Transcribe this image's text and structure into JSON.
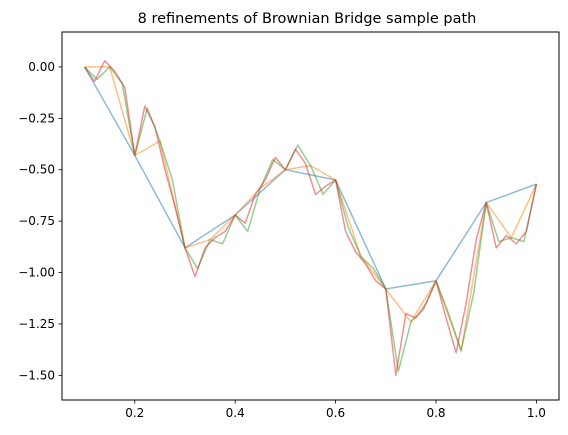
{
  "chart_data": {
    "type": "line",
    "title": "8 refinements of Brownian Bridge sample path",
    "xlabel": "",
    "ylabel": "",
    "xlim": [
      0.055,
      1.045
    ],
    "ylim": [
      -1.62,
      0.17
    ],
    "xticks": [
      0.2,
      0.4,
      0.6,
      0.8,
      1.0
    ],
    "xtick_labels": [
      "0.2",
      "0.4",
      "0.6",
      "0.8",
      "1.0"
    ],
    "yticks": [
      0.0,
      -0.25,
      -0.5,
      -0.75,
      -1.0,
      -1.25,
      -1.5
    ],
    "ytick_labels": [
      "0.00",
      "−0.25",
      "−0.50",
      "−0.75",
      "−1.00",
      "−1.25",
      "−1.50"
    ],
    "legend": false,
    "grid": false,
    "series": [
      {
        "color": "#1f77b4",
        "x": [
          0.1,
          0.2,
          0.3,
          0.4,
          0.5,
          0.6,
          0.7,
          0.8,
          0.9,
          1.0
        ],
        "y": [
          0.0,
          -0.43,
          -0.88,
          -0.72,
          -0.5,
          -0.55,
          -1.08,
          -1.04,
          -0.66,
          -0.57
        ]
      },
      {
        "color": "#ff7f0e",
        "x": [
          0.1,
          0.15,
          0.2,
          0.25,
          0.3,
          0.35,
          0.4,
          0.45,
          0.5,
          0.55,
          0.6,
          0.65,
          0.7,
          0.75,
          0.8,
          0.85,
          0.9,
          0.95,
          1.0
        ],
        "y": [
          0.0,
          0.0,
          -0.43,
          -0.36,
          -0.88,
          -0.84,
          -0.72,
          -0.59,
          -0.5,
          -0.48,
          -0.55,
          -0.92,
          -1.08,
          -1.24,
          -1.04,
          -1.38,
          -0.66,
          -0.83,
          -0.57
        ]
      },
      {
        "color": "#2ca02c",
        "x": [
          0.1,
          0.125,
          0.15,
          0.175,
          0.2,
          0.225,
          0.25,
          0.275,
          0.3,
          0.325,
          0.35,
          0.375,
          0.4,
          0.425,
          0.45,
          0.475,
          0.5,
          0.525,
          0.55,
          0.575,
          0.6,
          0.625,
          0.65,
          0.675,
          0.7,
          0.725,
          0.75,
          0.775,
          0.8,
          0.825,
          0.85,
          0.875,
          0.9,
          0.925,
          0.95,
          0.975,
          1.0
        ],
        "y": [
          0.0,
          -0.06,
          0.0,
          -0.08,
          -0.43,
          -0.2,
          -0.36,
          -0.55,
          -0.88,
          -0.98,
          -0.84,
          -0.86,
          -0.72,
          -0.8,
          -0.59,
          -0.45,
          -0.5,
          -0.38,
          -0.48,
          -0.62,
          -0.55,
          -0.78,
          -0.92,
          -0.98,
          -1.08,
          -1.48,
          -1.24,
          -1.18,
          -1.04,
          -1.2,
          -1.38,
          -1.1,
          -0.66,
          -0.85,
          -0.83,
          -0.85,
          -0.57
        ]
      },
      {
        "color": "#d62728",
        "x": [
          0.1,
          0.12,
          0.14,
          0.16,
          0.18,
          0.2,
          0.22,
          0.24,
          0.26,
          0.28,
          0.3,
          0.32,
          0.34,
          0.36,
          0.38,
          0.4,
          0.42,
          0.44,
          0.46,
          0.48,
          0.5,
          0.52,
          0.54,
          0.56,
          0.58,
          0.6,
          0.62,
          0.64,
          0.66,
          0.68,
          0.7,
          0.72,
          0.74,
          0.76,
          0.78,
          0.8,
          0.82,
          0.84,
          0.86,
          0.88,
          0.9,
          0.92,
          0.94,
          0.96,
          0.98,
          1.0
        ],
        "y": [
          0.0,
          -0.07,
          0.03,
          -0.02,
          -0.1,
          -0.43,
          -0.19,
          -0.29,
          -0.5,
          -0.68,
          -0.88,
          -1.02,
          -0.88,
          -0.83,
          -0.8,
          -0.72,
          -0.76,
          -0.62,
          -0.55,
          -0.44,
          -0.5,
          -0.4,
          -0.47,
          -0.62,
          -0.58,
          -0.55,
          -0.8,
          -0.9,
          -0.96,
          -1.04,
          -1.08,
          -1.5,
          -1.2,
          -1.22,
          -1.15,
          -1.04,
          -1.22,
          -1.39,
          -1.15,
          -0.84,
          -0.66,
          -0.88,
          -0.82,
          -0.86,
          -0.8,
          -0.57
        ]
      }
    ]
  }
}
